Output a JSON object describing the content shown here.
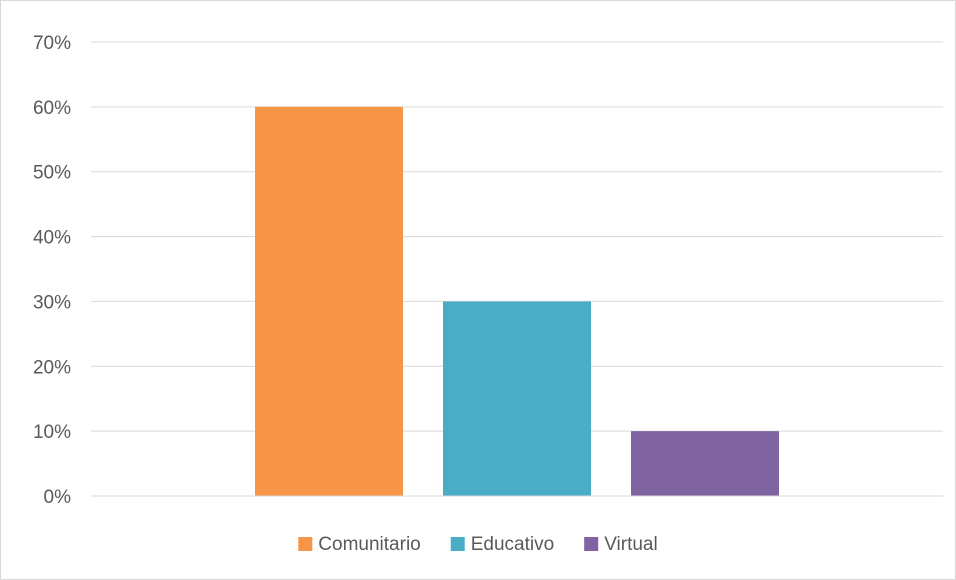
{
  "chart_data": {
    "type": "bar",
    "title": "",
    "xlabel": "",
    "ylabel": "",
    "categories": [
      "Comunitario",
      "Educativo",
      "Virtual"
    ],
    "values": [
      0.6,
      0.3,
      0.1
    ],
    "colors": [
      "#f79646",
      "#4bacc6",
      "#8064a2"
    ],
    "ylim": [
      0,
      0.7
    ],
    "yticks": [
      0,
      0.1,
      0.2,
      0.3,
      0.4,
      0.5,
      0.6,
      0.7
    ],
    "ytick_labels": [
      "0%",
      "10%",
      "20%",
      "30%",
      "40%",
      "50%",
      "60%",
      "70%"
    ],
    "grid": true,
    "gridline_color": "#d9d9d9",
    "legend": {
      "position": "bottom",
      "entries": [
        "Comunitario",
        "Educativo",
        "Virtual"
      ]
    }
  }
}
